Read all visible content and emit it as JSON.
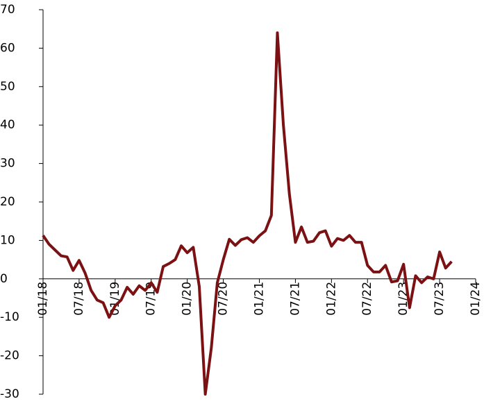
{
  "chart_data": {
    "type": "line",
    "categories": [
      "01/18",
      null,
      null,
      null,
      null,
      null,
      "07/18",
      null,
      null,
      null,
      null,
      null,
      "01/19",
      null,
      null,
      null,
      null,
      null,
      "07/19",
      null,
      null,
      null,
      null,
      null,
      "01/20",
      null,
      null,
      null,
      null,
      null,
      "07/20",
      null,
      null,
      null,
      null,
      null,
      "01/21",
      null,
      null,
      null,
      null,
      null,
      "07/21",
      null,
      null,
      null,
      null,
      null,
      "01/22",
      null,
      null,
      null,
      null,
      null,
      "07/22",
      null,
      null,
      null,
      null,
      null,
      "01/23",
      null,
      null,
      null,
      null,
      null,
      "07/23",
      null,
      null,
      null,
      null,
      null,
      "01/24"
    ],
    "series": [
      {
        "color": "#7b1113",
        "values": [
          11.3,
          9,
          7.5,
          6,
          5.7,
          2.2,
          4.8,
          1.5,
          -3,
          -5.5,
          -6.2,
          -10,
          -7,
          -5.5,
          -2.2,
          -4,
          -1.8,
          -3,
          -1,
          -3.5,
          3.2,
          4,
          5,
          8.6,
          6.8,
          8.2,
          -2,
          -30,
          -18,
          -1,
          5,
          10.3,
          8.7,
          10.2,
          10.7,
          9.5,
          11.2,
          12.5,
          16.5,
          64,
          40,
          22,
          9.5,
          13.5,
          9.5,
          9.8,
          12,
          12.5,
          8.5,
          10.5,
          10,
          11.3,
          9.5,
          9.5,
          3.5,
          1.8,
          1.8,
          3.5,
          -0.8,
          -0.5,
          3.8,
          -7.5,
          0.8,
          -1,
          0.5,
          0,
          7,
          2.8,
          4.5,
          null,
          null,
          null,
          null
        ]
      }
    ],
    "ylim": [
      -30,
      70
    ],
    "yticks": [
      -30,
      -20,
      -10,
      0,
      10,
      20,
      30,
      40,
      50,
      60,
      70
    ]
  }
}
